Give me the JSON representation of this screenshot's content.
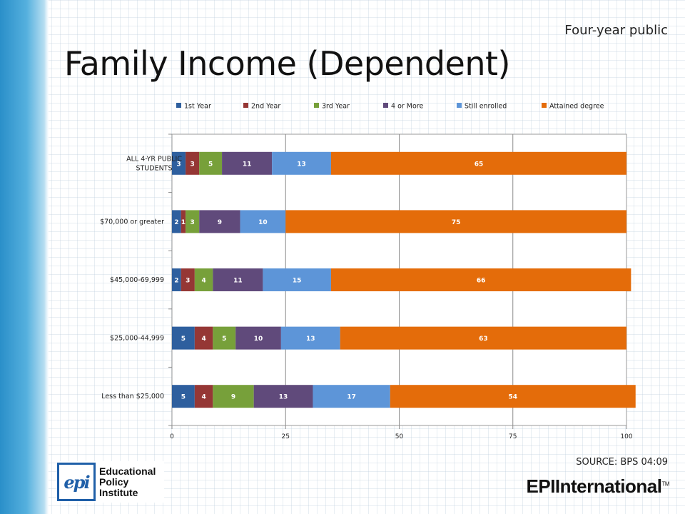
{
  "header": {
    "subtitle": "Four-year public",
    "title": "Family Income (Dependent)"
  },
  "footer": {
    "source": "SOURCE: BPS 04:09",
    "logo_left_mark": "epi",
    "logo_left_lines": [
      "Educational",
      "Policy",
      "Institute"
    ],
    "logo_right": "EPIInternational",
    "logo_right_tm": "TM"
  },
  "chart_data": {
    "type": "bar",
    "orientation": "horizontal",
    "stacked": true,
    "categories": [
      "ALL 4-YR PUBLIC STUDENTS",
      "$70,000 or greater",
      "$45,000-69,999",
      "$25,000-44,999",
      "Less than $25,000"
    ],
    "series": [
      {
        "name": "1st Year",
        "color": "#2e5f9e",
        "values": [
          3,
          2,
          2,
          5,
          5
        ]
      },
      {
        "name": "2nd Year",
        "color": "#953735",
        "values": [
          3,
          1,
          3,
          4,
          4
        ]
      },
      {
        "name": "3rd Year",
        "color": "#77a03a",
        "values": [
          5,
          3,
          4,
          5,
          9
        ]
      },
      {
        "name": "4 or More",
        "color": "#604a7b",
        "values": [
          11,
          9,
          11,
          10,
          13
        ]
      },
      {
        "name": "Still enrolled",
        "color": "#5d95d8",
        "values": [
          13,
          10,
          15,
          13,
          17
        ]
      },
      {
        "name": "Attained degree",
        "color": "#e46c0a",
        "values": [
          65,
          75,
          66,
          63,
          54
        ]
      }
    ],
    "xlim": [
      0,
      100
    ],
    "xticks": [
      0,
      25,
      50,
      75,
      100
    ],
    "grid": true,
    "legend": "top",
    "data_labels": true
  }
}
